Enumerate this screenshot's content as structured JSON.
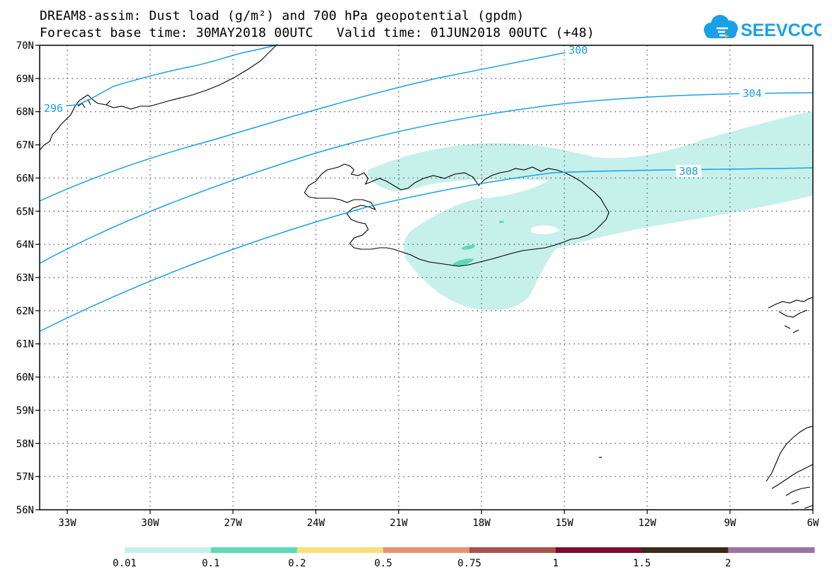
{
  "header": {
    "title_line1": "DREAM8-assim: Dust load (g/m²) and 700 hPa geopotential (gpdm)",
    "title_line2": "Forecast base time: 30MAY2018 00UTC   Valid time: 01JUN2018 00UTC (+48)"
  },
  "logo": {
    "text": "SEEVCCC",
    "color": "#1aa0e8",
    "accent": "#f5a623"
  },
  "map": {
    "lon_range": [
      -34,
      -6
    ],
    "lat_range": [
      56,
      70
    ],
    "lon_ticks": [
      {
        "v": -33,
        "label": "33W"
      },
      {
        "v": -30,
        "label": "30W"
      },
      {
        "v": -27,
        "label": "27W"
      },
      {
        "v": -24,
        "label": "24W"
      },
      {
        "v": -21,
        "label": "21W"
      },
      {
        "v": -18,
        "label": "18W"
      },
      {
        "v": -15,
        "label": "15W"
      },
      {
        "v": -12,
        "label": "12W"
      },
      {
        "v": -9,
        "label": "9W"
      },
      {
        "v": -6,
        "label": "6W"
      }
    ],
    "lat_ticks": [
      {
        "v": 70,
        "label": "70N"
      },
      {
        "v": 69,
        "label": "69N"
      },
      {
        "v": 68,
        "label": "68N"
      },
      {
        "v": 67,
        "label": "67N"
      },
      {
        "v": 66,
        "label": "66N"
      },
      {
        "v": 65,
        "label": "65N"
      },
      {
        "v": 64,
        "label": "64N"
      },
      {
        "v": 63,
        "label": "63N"
      },
      {
        "v": 62,
        "label": "62N"
      },
      {
        "v": 61,
        "label": "61N"
      },
      {
        "v": 60,
        "label": "60N"
      },
      {
        "v": 59,
        "label": "59N"
      },
      {
        "v": 58,
        "label": "58N"
      },
      {
        "v": 57,
        "label": "57N"
      },
      {
        "v": 56,
        "label": "56N"
      }
    ],
    "contour_color": "#1aa0e8",
    "contour_labels": [
      {
        "text": "296",
        "lon": -33.5,
        "lat": 68.1
      },
      {
        "text": "300",
        "lon": -14.5,
        "lat": 69.85
      },
      {
        "text": "304",
        "lon": -8.2,
        "lat": 68.55
      },
      {
        "text": "308",
        "lon": -10.5,
        "lat": 66.2
      }
    ]
  },
  "colorbar": {
    "colors": [
      "#c6f0ea",
      "#5ed9b7",
      "#f7e07a",
      "#e9926d",
      "#a6524d",
      "#7a0c2f",
      "#3b2a19",
      "#9d72a3"
    ],
    "labels": [
      "0.01",
      "0.1",
      "0.2",
      "0.5",
      "0.75",
      "1",
      "1.5",
      "2"
    ]
  }
}
